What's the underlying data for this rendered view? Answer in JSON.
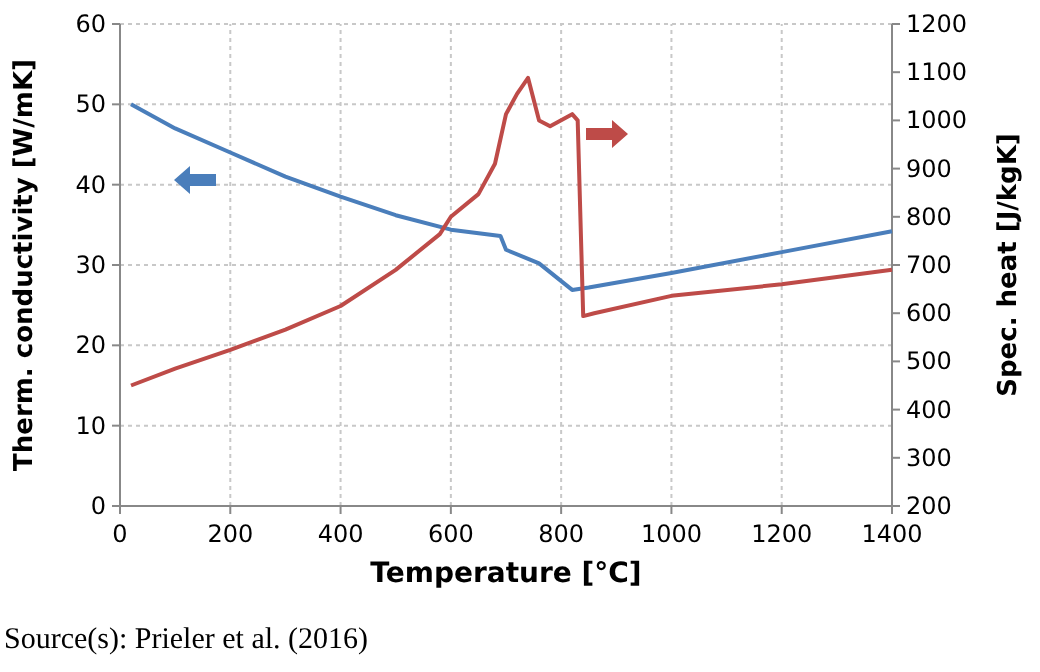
{
  "chart_data": {
    "type": "line",
    "xlabel": "Temperature [°C]",
    "ylabel": "Therm. conductivity [W/mK]",
    "y2label": "Spec. heat [J/kgK]",
    "xlim": [
      0,
      1400
    ],
    "xticks": [
      0,
      200,
      400,
      600,
      800,
      1000,
      1200,
      1400
    ],
    "ylim": [
      0,
      60
    ],
    "yticks": [
      0,
      10,
      20,
      30,
      40,
      50,
      60
    ],
    "y2lim": [
      200,
      1200
    ],
    "y2ticks": [
      200,
      300,
      400,
      500,
      600,
      700,
      800,
      900,
      1000,
      1100,
      1200
    ],
    "grid": true,
    "marker": "none",
    "line_style": "solid",
    "series": [
      {
        "color": "#4a7ebb",
        "x": [
          20,
          100,
          200,
          300,
          400,
          500,
          600,
          690,
          700,
          760,
          820,
          850,
          1000,
          1200,
          1400
        ],
        "values": [
          50,
          47,
          44,
          41,
          38.5,
          36.2,
          34.4,
          33.6,
          31.9,
          30.2,
          26.9,
          27.2,
          29,
          31.6,
          34.2
        ]
      },
      {
        "color": "#be4b48",
        "axis": "y2",
        "x": [
          20,
          100,
          200,
          300,
          400,
          500,
          580,
          600,
          650,
          680,
          700,
          720,
          740,
          760,
          780,
          820,
          830,
          840,
          860,
          1000,
          1200,
          1400
        ],
        "values": [
          450,
          485,
          524,
          566,
          615,
          690,
          764,
          800,
          847,
          910,
          1013,
          1055,
          1088,
          1000,
          988,
          1013,
          1000,
          594,
          600,
          636,
          660,
          690
        ]
      }
    ],
    "annotations": [
      "Source(s): Prieler et al. (2016)"
    ]
  }
}
